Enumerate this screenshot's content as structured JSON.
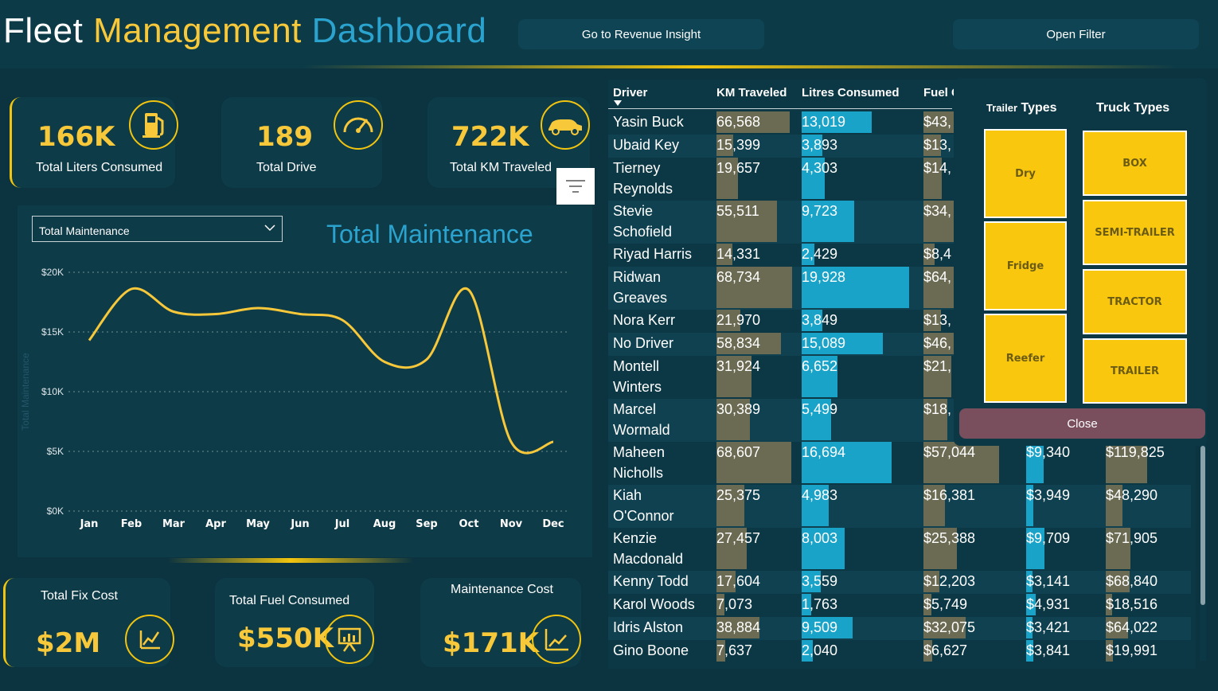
{
  "header": {
    "title_part1": "Fleet",
    "title_part2": "Management",
    "title_part3": "Dashboard",
    "revenue_button": "Go to Revenue Insight",
    "filter_button": "Open Filter"
  },
  "kpis_top": [
    {
      "value": "166K",
      "label": "Total Liters Consumed",
      "icon": "fuel-pump-icon"
    },
    {
      "value": "189",
      "label": "Total Drive",
      "icon": "speedometer-icon"
    },
    {
      "value": "722K",
      "label": "Total KM Traveled",
      "icon": "car-icon"
    }
  ],
  "kpis_bottom": [
    {
      "value": "$2M",
      "label": "Total Fix Cost",
      "icon": "line-chart-icon"
    },
    {
      "value": "$550K",
      "label": "Total Fuel Consumed",
      "icon": "presentation-chart-icon"
    },
    {
      "value": "$171K",
      "label": "Maintenance Cost",
      "icon": "trend-chart-icon"
    }
  ],
  "chart_panel": {
    "dropdown_value": "Total Maintenance",
    "title": "Total Maintenance"
  },
  "chart_data": {
    "type": "line",
    "title": "Total Maintenance",
    "ylabel": "Total Maintenance",
    "categories": [
      "Jan",
      "Feb",
      "Mar",
      "Apr",
      "May",
      "Jun",
      "Jul",
      "Aug",
      "Sep",
      "Oct",
      "Nov",
      "Dec"
    ],
    "values": [
      14300,
      18600,
      16700,
      16500,
      17000,
      16500,
      16000,
      12500,
      12700,
      18500,
      5800,
      5800
    ],
    "yticks": [
      "$0K",
      "$5K",
      "$10K",
      "$15K",
      "$20K"
    ],
    "ylim": [
      0,
      20000
    ],
    "grid": true,
    "line_color": "#f7c83a"
  },
  "table": {
    "headers": [
      "Driver",
      "KM Traveled",
      "Litres Consumed",
      "Fuel C"
    ],
    "rows": [
      {
        "driver": [
          "Yasin Buck"
        ],
        "km": "66,568",
        "km_v": 66568,
        "litres": "13,019",
        "lit_v": 13019,
        "fuel": "$43,",
        "fuel_v": 43000,
        "c5": "",
        "c5_v": 0,
        "c6": "",
        "c6_v": 0
      },
      {
        "driver": [
          "Ubaid Key"
        ],
        "km": "15,399",
        "km_v": 15399,
        "litres": "3,893",
        "lit_v": 3893,
        "fuel": "$13,",
        "fuel_v": 13000,
        "c5": "",
        "c5_v": 0,
        "c6": "",
        "c6_v": 0
      },
      {
        "driver": [
          "Tierney",
          "Reynolds"
        ],
        "km": "19,657",
        "km_v": 19657,
        "litres": "4,303",
        "lit_v": 4303,
        "fuel": "$14,",
        "fuel_v": 14000,
        "c5": "",
        "c5_v": 0,
        "c6": "",
        "c6_v": 0
      },
      {
        "driver": [
          "Stevie",
          "Schofield"
        ],
        "km": "55,511",
        "km_v": 55511,
        "litres": "9,723",
        "lit_v": 9723,
        "fuel": "$34,",
        "fuel_v": 34000,
        "c5": "",
        "c5_v": 0,
        "c6": "",
        "c6_v": 0
      },
      {
        "driver": [
          "Riyad Harris"
        ],
        "km": "14,331",
        "km_v": 14331,
        "litres": "2,429",
        "lit_v": 2429,
        "fuel": "$8,4",
        "fuel_v": 8400,
        "c5": "",
        "c5_v": 0,
        "c6": "",
        "c6_v": 0
      },
      {
        "driver": [
          "Ridwan",
          "Greaves"
        ],
        "km": "68,734",
        "km_v": 68734,
        "litres": "19,928",
        "lit_v": 19928,
        "fuel": "$64,",
        "fuel_v": 64000,
        "c5": "",
        "c5_v": 0,
        "c6": "",
        "c6_v": 0
      },
      {
        "driver": [
          "Nora Kerr"
        ],
        "km": "21,970",
        "km_v": 21970,
        "litres": "3,849",
        "lit_v": 3849,
        "fuel": "$13,",
        "fuel_v": 13000,
        "c5": "",
        "c5_v": 0,
        "c6": "",
        "c6_v": 0
      },
      {
        "driver": [
          "No Driver"
        ],
        "km": "58,834",
        "km_v": 58834,
        "litres": "15,089",
        "lit_v": 15089,
        "fuel": "$46,",
        "fuel_v": 46000,
        "c5": "",
        "c5_v": 0,
        "c6": "",
        "c6_v": 0
      },
      {
        "driver": [
          "Montell",
          "Winters"
        ],
        "km": "31,924",
        "km_v": 31924,
        "litres": "6,652",
        "lit_v": 6652,
        "fuel": "$21,",
        "fuel_v": 21000,
        "c5": "",
        "c5_v": 0,
        "c6": "",
        "c6_v": 0
      },
      {
        "driver": [
          "Marcel",
          "Wormald"
        ],
        "km": "30,389",
        "km_v": 30389,
        "litres": "5,499",
        "lit_v": 5499,
        "fuel": "$18,",
        "fuel_v": 18000,
        "c5": "",
        "c5_v": 0,
        "c6": "",
        "c6_v": 0
      },
      {
        "driver": [
          "Maheen",
          "Nicholls"
        ],
        "km": "68,607",
        "km_v": 68607,
        "litres": "16,694",
        "lit_v": 16694,
        "fuel": "$57,044",
        "fuel_v": 57044,
        "c5": "$9,340",
        "c5_v": 9340,
        "c6": "$119,825",
        "c6_v": 119825
      },
      {
        "driver": [
          "Kiah",
          "O'Connor"
        ],
        "km": "25,375",
        "km_v": 25375,
        "litres": "4,983",
        "lit_v": 4983,
        "fuel": "$16,381",
        "fuel_v": 16381,
        "c5": "$3,949",
        "c5_v": 3949,
        "c6": "$48,290",
        "c6_v": 48290
      },
      {
        "driver": [
          "Kenzie",
          "Macdonald"
        ],
        "km": "27,457",
        "km_v": 27457,
        "litres": "8,003",
        "lit_v": 8003,
        "fuel": "$25,388",
        "fuel_v": 25388,
        "c5": "$9,709",
        "c5_v": 9709,
        "c6": "$71,905",
        "c6_v": 71905
      },
      {
        "driver": [
          "Kenny Todd"
        ],
        "km": "17,604",
        "km_v": 17604,
        "litres": "3,559",
        "lit_v": 3559,
        "fuel": "$12,203",
        "fuel_v": 12203,
        "c5": "$3,141",
        "c5_v": 3141,
        "c6": "$68,840",
        "c6_v": 68840
      },
      {
        "driver": [
          "Karol Woods"
        ],
        "km": "7,073",
        "km_v": 7073,
        "litres": "1,763",
        "lit_v": 1763,
        "fuel": "$5,749",
        "fuel_v": 5749,
        "c5": "$4,931",
        "c5_v": 4931,
        "c6": "$18,516",
        "c6_v": 18516
      },
      {
        "driver": [
          "Idris Alston"
        ],
        "km": "38,884",
        "km_v": 38884,
        "litres": "9,509",
        "lit_v": 9509,
        "fuel": "$32,075",
        "fuel_v": 32075,
        "c5": "$3,421",
        "c5_v": 3421,
        "c6": "$64,022",
        "c6_v": 64022
      },
      {
        "driver": [
          "Gino Boone"
        ],
        "km": "7,637",
        "km_v": 7637,
        "litres": "2,040",
        "lit_v": 2040,
        "fuel": "$6,627",
        "fuel_v": 6627,
        "c5": "$3,841",
        "c5_v": 3841,
        "c6": "$19,991",
        "c6_v": 19991
      }
    ]
  },
  "filter_panel": {
    "trailer_header_small": "Trailer",
    "trailer_header_big": "Types",
    "truck_header": "Truck Types",
    "trailer_types": [
      "Dry",
      "Fridge",
      "Reefer"
    ],
    "truck_types": [
      "BOX",
      "SEMI-TRAILER",
      "TRACTOR",
      "TRAILER"
    ],
    "close_button": "Close"
  },
  "colors": {
    "background": "#0b3340",
    "accent_yellow": "#f7c83a",
    "accent_blue": "#2ba3cf",
    "bar_olive": "#6b6a52",
    "bar_cyan": "#1aa3c8"
  }
}
